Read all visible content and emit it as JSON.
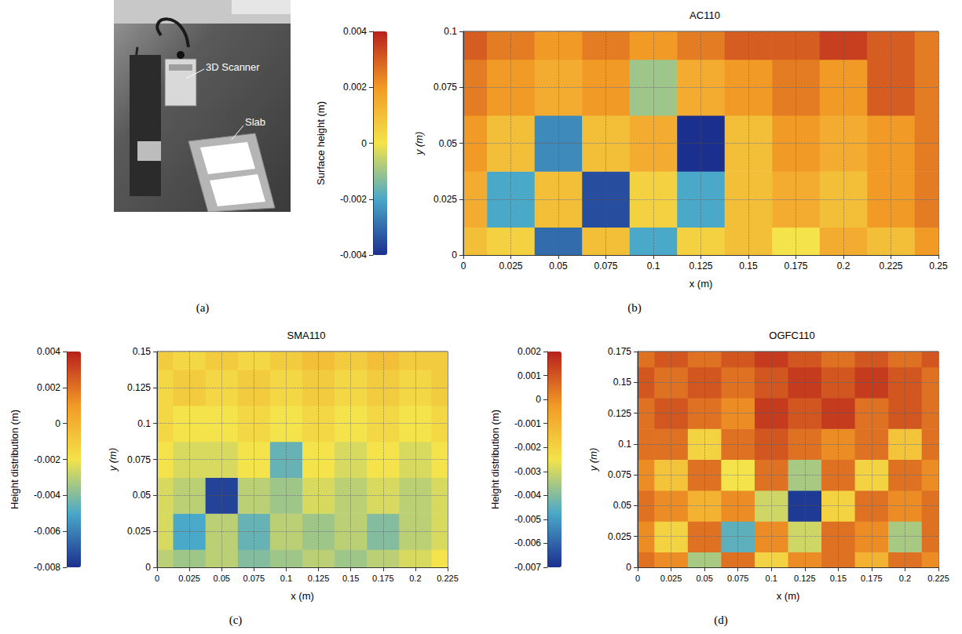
{
  "photo": {
    "panel": "(a)",
    "annotations": [
      "3D Scanner",
      "Slab"
    ]
  },
  "chart_data": [
    {
      "type": "surface",
      "panel": "(b)",
      "title": "AC110",
      "x_label": "x (m)",
      "y_label": "y (m)",
      "z_label": "Surface height (m)",
      "x": [
        0,
        0.025,
        0.05,
        0.075,
        0.1,
        0.125,
        0.15,
        0.175,
        0.2,
        0.225,
        0.25
      ],
      "y": [
        0,
        0.025,
        0.05,
        0.075,
        0.1
      ],
      "z": [
        [
          0.001,
          0.0005,
          -0.003,
          0.001,
          -0.002,
          0.0005,
          0.001,
          0,
          0.0015,
          0.001,
          0.002
        ],
        [
          0.0015,
          -0.002,
          0.001,
          -0.0035,
          0.0005,
          -0.002,
          0.001,
          0.0015,
          0.001,
          0.002,
          0.0025
        ],
        [
          0.002,
          0.001,
          -0.0025,
          0.001,
          0.0015,
          -0.004,
          0.001,
          0.002,
          0.0015,
          0.002,
          0.0025
        ],
        [
          0.0025,
          0.002,
          0.0015,
          0.002,
          -0.001,
          0.0015,
          0.002,
          0.0025,
          0.002,
          0.003,
          0.0025
        ],
        [
          0.003,
          0.0025,
          0.002,
          0.0025,
          0.002,
          0.0025,
          0.003,
          0.003,
          0.0035,
          0.003,
          0.0025
        ]
      ],
      "xlim": [
        0,
        0.25
      ],
      "xticks": [
        0,
        0.025,
        0.05,
        0.075,
        0.1,
        0.125,
        0.15,
        0.175,
        0.2,
        0.225,
        0.25
      ],
      "ylim": [
        0,
        0.1
      ],
      "yticks": [
        0,
        0.025,
        0.05,
        0.075,
        0.1
      ],
      "zlim": [
        -0.004,
        0.004
      ],
      "zticks": [
        -0.004,
        -0.002,
        0,
        0.002,
        0.004
      ],
      "grid": true
    },
    {
      "type": "surface",
      "panel": "(c)",
      "title": "SMA110",
      "x_label": "x (m)",
      "y_label": "y (m)",
      "z_label": "Height distribution (m)",
      "x": [
        0,
        0.025,
        0.05,
        0.075,
        0.1,
        0.125,
        0.15,
        0.175,
        0.2,
        0.225
      ],
      "y": [
        0,
        0.025,
        0.05,
        0.075,
        0.1,
        0.125,
        0.15
      ],
      "z": [
        [
          -0.003,
          -0.0035,
          -0.003,
          -0.004,
          -0.0035,
          -0.003,
          -0.0035,
          -0.003,
          -0.0025,
          -0.002
        ],
        [
          -0.0025,
          -0.005,
          -0.003,
          -0.0045,
          -0.003,
          -0.0035,
          -0.003,
          -0.004,
          -0.003,
          -0.0025
        ],
        [
          -0.0025,
          -0.003,
          -0.0075,
          -0.003,
          -0.0035,
          -0.0025,
          -0.003,
          -0.0025,
          -0.003,
          -0.0025
        ],
        [
          -0.002,
          -0.0025,
          -0.0025,
          -0.002,
          -0.0045,
          -0.002,
          -0.0025,
          -0.002,
          -0.0025,
          -0.002
        ],
        [
          -0.0015,
          -0.002,
          -0.002,
          -0.0015,
          -0.002,
          -0.0015,
          -0.002,
          -0.0015,
          -0.002,
          -0.0015
        ],
        [
          -0.0015,
          -0.001,
          -0.0015,
          -0.001,
          -0.0015,
          -0.001,
          -0.0015,
          -0.001,
          -0.0015,
          -0.001
        ],
        [
          -0.001,
          -0.0015,
          -0.001,
          -0.0015,
          -0.001,
          -0.0005,
          -0.001,
          -0.0005,
          -0.001,
          -0.001
        ]
      ],
      "xlim": [
        0,
        0.225
      ],
      "xticks": [
        0,
        0.025,
        0.05,
        0.075,
        0.1,
        0.125,
        0.15,
        0.175,
        0.2,
        0.225
      ],
      "ylim": [
        0,
        0.15
      ],
      "yticks": [
        0,
        0.025,
        0.05,
        0.075,
        0.1,
        0.125,
        0.15
      ],
      "zlim": [
        -0.008,
        0.004
      ],
      "zticks": [
        -0.008,
        -0.006,
        -0.004,
        -0.002,
        0,
        0.002,
        0.004
      ],
      "grid": true
    },
    {
      "type": "surface",
      "panel": "(d)",
      "title": "OGFC110",
      "x_label": "x (m)",
      "y_label": "y (m)",
      "z_label": "Height distribution (m)",
      "x": [
        0,
        0.025,
        0.05,
        0.075,
        0.1,
        0.125,
        0.15,
        0.175,
        0.2,
        0.225
      ],
      "y": [
        0,
        0.025,
        0.05,
        0.075,
        0.1,
        0.125,
        0.15,
        0.175
      ],
      "z": [
        [
          0.0005,
          0,
          -0.0035,
          0.0005,
          -0.002,
          0,
          0.0005,
          -0.001,
          0.0005,
          0
        ],
        [
          0,
          -0.002,
          0.0005,
          -0.0045,
          0,
          -0.003,
          0.0005,
          0,
          -0.0035,
          0.0005
        ],
        [
          0.0005,
          0,
          -0.001,
          0,
          -0.003,
          -0.0068,
          -0.002,
          0.0005,
          0,
          0.0005
        ],
        [
          0,
          -0.0015,
          0.0005,
          -0.0025,
          0.0005,
          -0.0035,
          0.0005,
          -0.002,
          0.0005,
          0
        ],
        [
          0.0005,
          0.0005,
          -0.002,
          0.0005,
          0.001,
          0.0005,
          0,
          0.0005,
          -0.0015,
          0.0005
        ],
        [
          0.0005,
          0.001,
          0.0005,
          0,
          0.0015,
          0.001,
          0.0015,
          0.0005,
          0.001,
          0.0005
        ],
        [
          0.001,
          0.0005,
          0.001,
          0.0005,
          0.001,
          0.0015,
          0.001,
          0.0015,
          0.001,
          0.0005
        ],
        [
          0.0005,
          0.001,
          0.0005,
          0.001,
          0.0015,
          0.001,
          0.0005,
          0.001,
          0.0005,
          0.001
        ]
      ],
      "xlim": [
        0,
        0.225
      ],
      "xticks": [
        0,
        0.025,
        0.05,
        0.075,
        0.1,
        0.125,
        0.15,
        0.175,
        0.2,
        0.225
      ],
      "ylim": [
        0,
        0.175
      ],
      "yticks": [
        0,
        0.025,
        0.05,
        0.075,
        0.1,
        0.125,
        0.15,
        0.175
      ],
      "zlim": [
        -0.007,
        0.002
      ],
      "zticks": [
        -0.007,
        -0.006,
        -0.005,
        -0.004,
        -0.003,
        -0.002,
        -0.001,
        0,
        0.001,
        0.002
      ],
      "grid": true
    }
  ]
}
